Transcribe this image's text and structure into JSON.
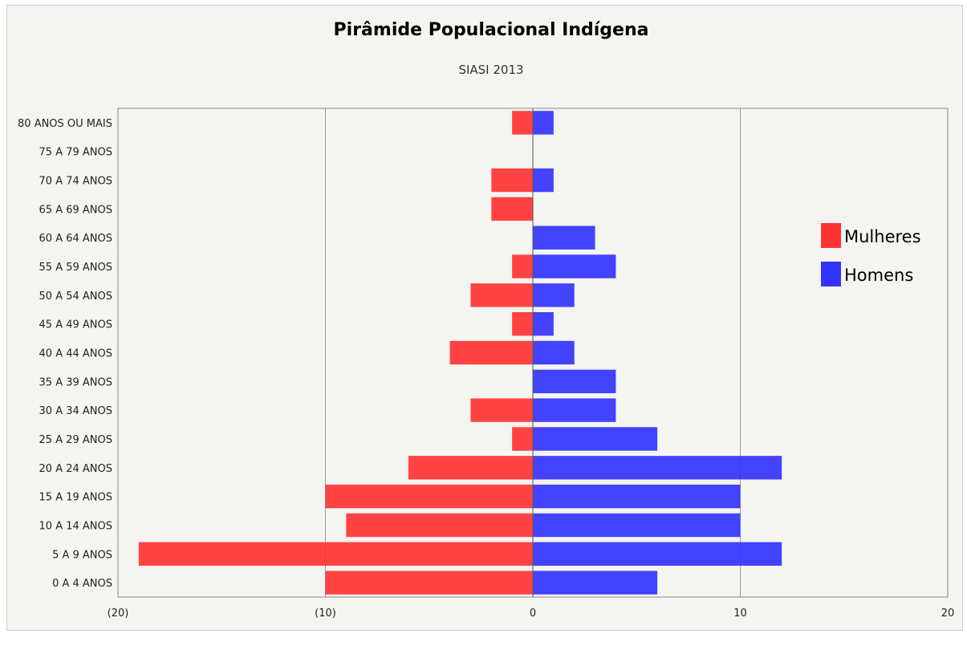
{
  "chart_data": {
    "type": "bar",
    "orientation": "horizontal",
    "title": "Pirâmide Populacional Indígena",
    "subtitle": "SIASI 2013",
    "categories": [
      "80 ANOS OU MAIS",
      "75 A 79 ANOS",
      "70 A 74 ANOS",
      "65 A 69 ANOS",
      "60 A 64 ANOS",
      "55 A 59 ANOS",
      "50 A 54 ANOS",
      "45 A 49 ANOS",
      "40 A 44 ANOS",
      "35 A 39 ANOS",
      "30 A 34 ANOS",
      "25 A 29 ANOS",
      "20 A 24 ANOS",
      "15 A 19 ANOS",
      "10 A 14 ANOS",
      "5 A 9 ANOS",
      "0 A 4 ANOS"
    ],
    "series": [
      {
        "name": "Mulheres",
        "color": "#ff3333",
        "values": [
          -1,
          0,
          -2,
          -2,
          0,
          -1,
          -3,
          -1,
          -4,
          0,
          -3,
          -1,
          -6,
          -10,
          -9,
          -19,
          -10
        ]
      },
      {
        "name": "Homens",
        "color": "#3333ff",
        "values": [
          1,
          0,
          1,
          0,
          3,
          4,
          2,
          1,
          2,
          4,
          4,
          6,
          12,
          10,
          10,
          12,
          6
        ]
      }
    ],
    "xlim": [
      -20,
      20
    ],
    "xticks": [
      -20,
      -10,
      0,
      10,
      20
    ],
    "xtick_labels": [
      "(20)",
      "(10)",
      "0",
      "10",
      "20"
    ],
    "grid": "vertical",
    "legend_position": "right"
  }
}
